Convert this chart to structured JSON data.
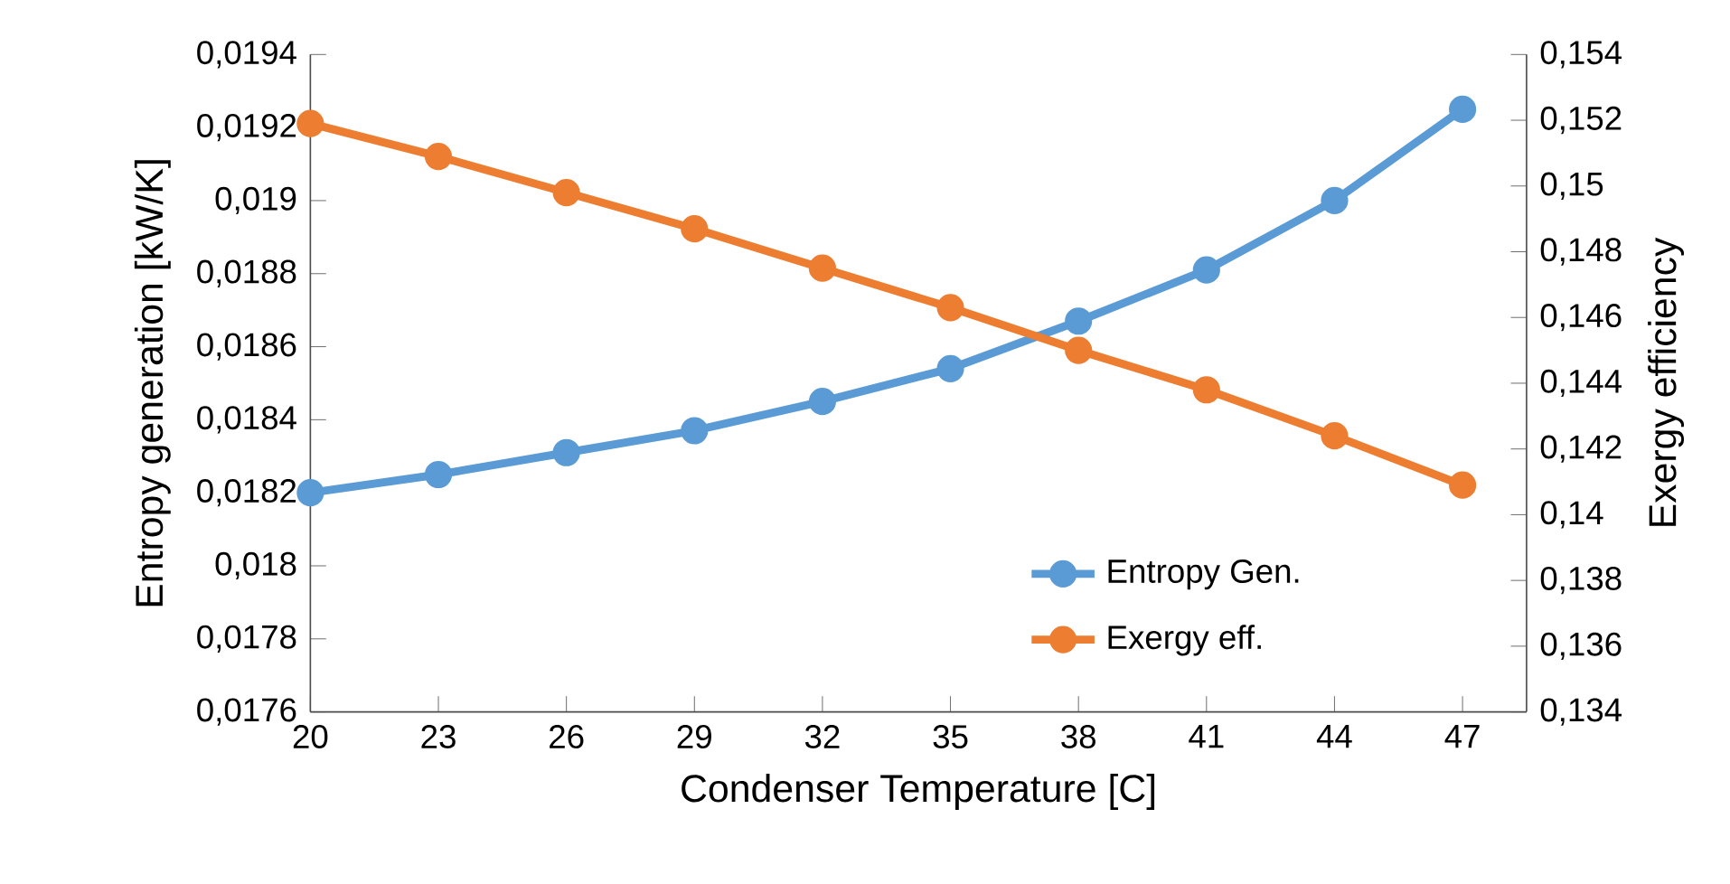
{
  "chart_data": {
    "type": "line",
    "xlabel": "Condenser Temperature [C]",
    "ylabel": "Entropy generation [kW/K]",
    "y2label": "Exergy efficiency",
    "categories": [
      "20",
      "23",
      "26",
      "29",
      "32",
      "35",
      "38",
      "41",
      "44",
      "47"
    ],
    "series": [
      {
        "name": "Entropy Gen.",
        "color": "#5b9bd5",
        "values": [
          0.0182,
          0.01825,
          0.01831,
          0.01837,
          0.01845,
          0.01854,
          0.01867,
          0.01881,
          0.019,
          0.01925
        ]
      },
      {
        "name": "Exergy eff.",
        "color": "#ed7d31",
        "axis": "y2",
        "values": [
          0.1519,
          0.1509,
          0.1498,
          0.1487,
          0.1475,
          0.1463,
          0.145,
          0.1438,
          0.1424,
          0.1409
        ]
      }
    ],
    "ylim": [
      0.0176,
      0.0194
    ],
    "yticks": [
      {
        "value": 0.0176,
        "label": "0,0176"
      },
      {
        "value": 0.0178,
        "label": "0,0178"
      },
      {
        "value": 0.018,
        "label": "0,018"
      },
      {
        "value": 0.0182,
        "label": "0,0182"
      },
      {
        "value": 0.0184,
        "label": "0,0184"
      },
      {
        "value": 0.0186,
        "label": "0,0186"
      },
      {
        "value": 0.0188,
        "label": "0,0188"
      },
      {
        "value": 0.019,
        "label": "0,019"
      },
      {
        "value": 0.0192,
        "label": "0,0192"
      },
      {
        "value": 0.0194,
        "label": "0,0194"
      }
    ],
    "y2lim": [
      0.134,
      0.154
    ],
    "y2ticks": [
      {
        "value": 0.134,
        "label": "0,134"
      },
      {
        "value": 0.136,
        "label": "0,136"
      },
      {
        "value": 0.138,
        "label": "0,138"
      },
      {
        "value": 0.14,
        "label": "0,14"
      },
      {
        "value": 0.142,
        "label": "0,142"
      },
      {
        "value": 0.144,
        "label": "0,144"
      },
      {
        "value": 0.146,
        "label": "0,146"
      },
      {
        "value": 0.148,
        "label": "0,148"
      },
      {
        "value": 0.15,
        "label": "0,15"
      },
      {
        "value": 0.152,
        "label": "0,152"
      },
      {
        "value": 0.154,
        "label": "0,154"
      }
    ],
    "marker": "circle",
    "line_style": "solid",
    "legend": "bottom right",
    "grid": false
  }
}
